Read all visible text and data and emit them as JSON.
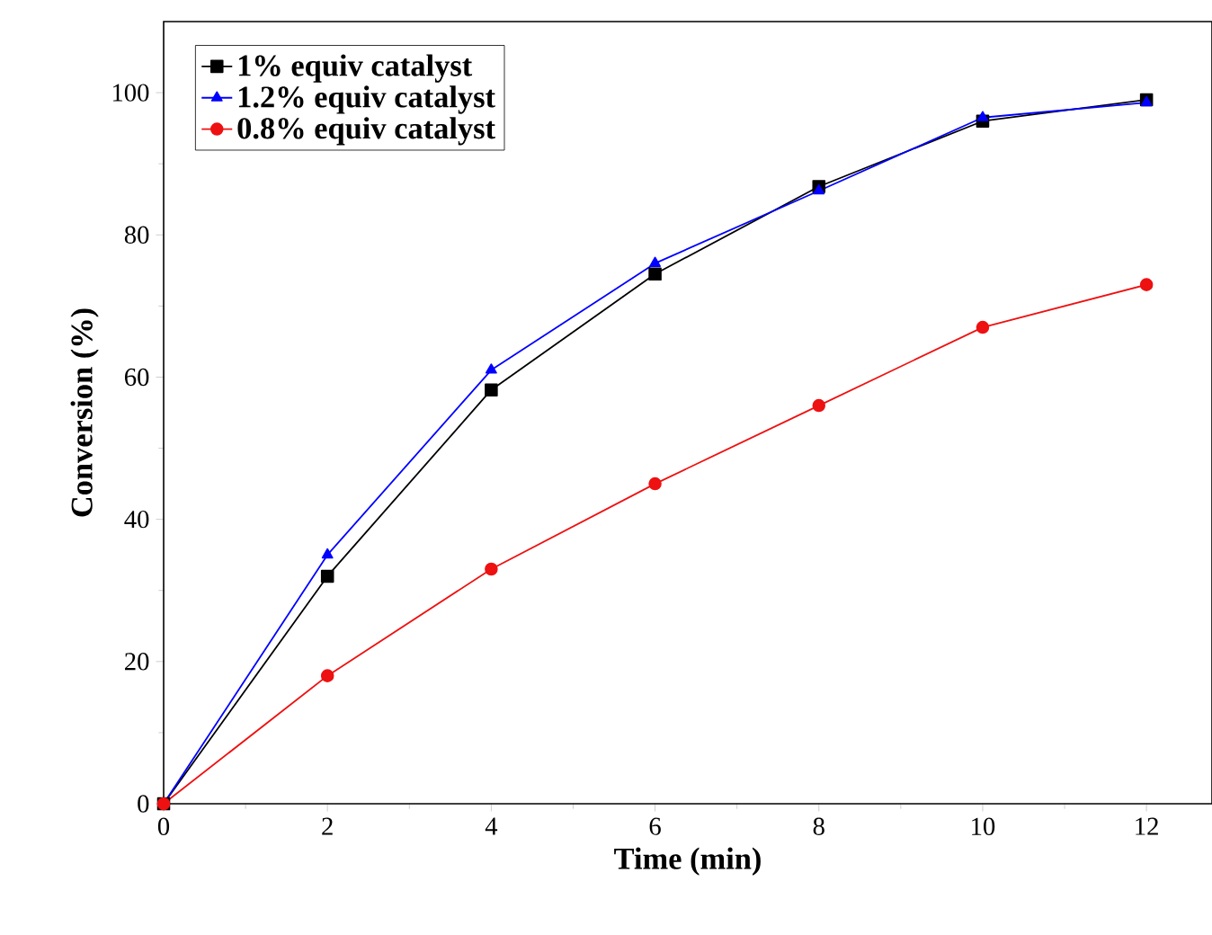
{
  "chart_data": {
    "type": "line",
    "xlabel": "Time (min)",
    "ylabel": "Conversion (%)",
    "x": [
      0,
      2,
      4,
      6,
      8,
      10,
      12
    ],
    "series": [
      {
        "name": "1% equiv catalyst",
        "color": "#000000",
        "marker": "square",
        "values": [
          0,
          32,
          58.2,
          74.5,
          86.8,
          96,
          99
        ]
      },
      {
        "name": "1.2% equiv catalyst",
        "color": "#0000ff",
        "marker": "triangle",
        "values": [
          0,
          35,
          61,
          76,
          86.2,
          96.5,
          98.6
        ]
      },
      {
        "name": "0.8% equiv catalyst",
        "color": "#ee1111",
        "marker": "circle",
        "values": [
          0,
          18,
          33,
          45,
          56,
          67,
          73
        ]
      }
    ],
    "xlim": [
      0,
      12.8
    ],
    "ylim": [
      0,
      110
    ],
    "xticks": [
      0,
      2,
      4,
      6,
      8,
      10,
      12
    ],
    "yticks": [
      0,
      20,
      40,
      60,
      80,
      100
    ],
    "grid": false,
    "legend": "top left"
  }
}
